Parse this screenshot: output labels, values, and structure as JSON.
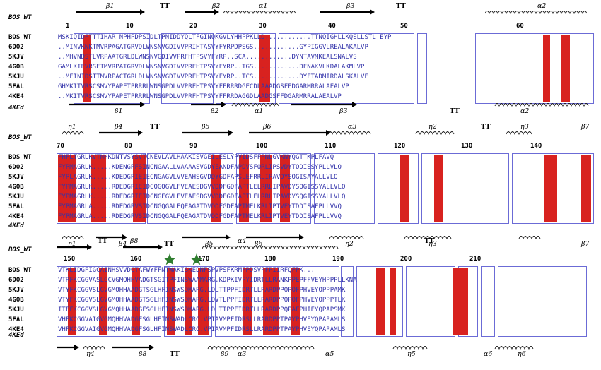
{
  "colors": {
    "conserved_fill": "#d8221f",
    "similar_text": "#d8221f",
    "box_border": "#6b6bd6",
    "arrow": "#000000"
  },
  "panels": [
    {
      "ref_label": "BOS_WT",
      "bottom_label": "4KEd",
      "sequences": [
        {
          "name": "BOS_WT",
          "seq": "MSKIQIDFTTTIHAR NPHPDPSIDLTPNIDDYQLTFGINQKGVLYHHPPKLLD............TTNQIGHLLKQSLLSTL EYP"
        },
        {
          "name": "6DO2",
          "seq": "..MINVKNKTMVRPAGATGRVDLWNSNVGDIVVPRIHTASVYFYRPDPSGS............GYPIGGVLREALAKALVP"
        },
        {
          "name": "5KJV",
          "seq": "..MHVNDSTLVRPAATGRLDLWNSNVGDIVVPRFHTPSVYFYRP..SCA............DYNTAVMKEALSNALVS"
        },
        {
          "name": "4GOB",
          "seq": "GAMLKIEVRSETMVRPATGRVDLWNSNVGDIVVPRFHTPSVYFYRP..TGS............DFNAKVLKDALAKMLVP"
        },
        {
          "name": "5KJU",
          "seq": "..MFINIDSTTMVRPACTGRLDLWNSNVGDIVVPRFHTPSVYFYRP..TCS............DYFTADMIRDALSKALVE"
        },
        {
          "name": "5FAL",
          "seq": "GHMKITVRSCSMVYPAPETPRRRLWNSGPDLVVPRFHTPSVYFFRRRDGECDLAAADGSFFDGARMRRALAEALVP"
        },
        {
          "name": "4KE4",
          "seq": "..MKITVRSCSMVYPAPETPRRRLWNSGPDLVVPRFHTPSVYFFRRDAGGDLAADGSFFDGARMRRALAEALVP"
        }
      ],
      "numbers": [
        "1",
        "10",
        "20",
        "30",
        "40",
        "50",
        "60"
      ],
      "top_ss": [
        "β1",
        "TT",
        "β2",
        "α1",
        "β3",
        "TT",
        "α2"
      ],
      "bottom_ss": [
        "β1",
        "β2",
        "α1",
        "β3",
        "TT",
        "α2"
      ]
    },
    {
      "ref_label": "BOS_WT",
      "bottom_label": "4KEd",
      "sequences": [
        {
          "name": "BOS_WT",
          "seq": "FHFLTGRLKVTNHKDNTVSYSVTCNEVLAVLHAAKISVGEILESLYPVIDSFFPNLGVKNYQGTTKPLFAVQ"
        },
        {
          "name": "6DO2",
          "seq": "FYPMAGRLK.....KDENGRFSINCNGAALLVAAAASVGDYEANDFAPDVSFQRLIPSVDYTQDISSYPLLVLQ"
        },
        {
          "name": "5KJV",
          "seq": "FYPLAGRLK.....KDEDGRIEIECNGAGVLVVEAHSGVDDYGDFAPSLEFRRLIPAVDYSQGISAYALLVLQ"
        },
        {
          "name": "4GOB",
          "seq": "FYPMAGRLK.....RDEDGRIEIDCQGQGVLFVEAESDGVVDDFGDFAPTLELRRLIPAVDYSQGISSYALLVLQ"
        },
        {
          "name": "5KJU",
          "seq": "FYPMAGRLK.....RDEDGRIEIDCNGEGVLFVEAESDGVVDDFGDFAPTLELRRLIPAVDYSQGISSYALLVLQ"
        },
        {
          "name": "5FAL",
          "seq": "FYPMAGRLA.....RDEDGRVSIDCNGQGALFQEAGATDVDDFGDFAPTMELKRLIPTVEYTDDISAFPLLVVQ"
        },
        {
          "name": "4KE4",
          "seq": "FYPMAGRLA.....RDEDGRVSIDCNGQGALFQEAGATDVDDFGDFAPTMELKRLIPTVEYTDDISAFPLLVVQ"
        }
      ],
      "numbers": [
        "70",
        "80",
        "90",
        "100",
        "110",
        "120",
        "130",
        "140"
      ],
      "top_ss": [
        "η1",
        "β4",
        "TT",
        "β5",
        "β6",
        "α3",
        "η2",
        "TT",
        "η3",
        "β7"
      ],
      "bottom_ss": [
        "η1",
        "β4",
        "TT",
        "β5",
        "β6",
        "η2",
        "η3",
        "β7"
      ]
    },
    {
      "ref_label": "BOS_WT",
      "bottom_label": "4KEd",
      "sequences": [
        {
          "name": "BOS_WT",
          "seq": "VTKLIDGFIGCAINHSVVDGTAFWYFFNTWAKISKEDNFSPVPSFKRMFPDSVPFPIIRFQFPK..."
        },
        {
          "name": "6DO2",
          "seq": "VTRFKCGGVASLGCVGMQHHVADGTSGITPFINSWAAMARG.KDPKIVPYIDRTLLRANKPPEPFFVEYHPPPLLKNA"
        },
        {
          "name": "5KJV",
          "seq": "VTYFKCGGVSLGVGMQHHAADGTSGLHFINSWSDMARG.LDLTTPPFIDRTLLRARDPPQPQFPHVEYQPPPAMK"
        },
        {
          "name": "4GOB",
          "seq": "VTYFKCGGVSLGVGMQHHAADGTSGLHFINSWSDMARG.LDVTLPPFIDRTLLRARDPPQPQFPHVEYQPPPTLK"
        },
        {
          "name": "5KJU",
          "seq": "ITFFKCGGVSLGVGMQHHAADGFSGLHFINSWSDMARG.LDLTIPPFIDRTLLRARDPPQPAFPHIEYQPAPSMK"
        },
        {
          "name": "5FAL",
          "seq": "VHFKCGGVAIGVGMQHHVADGFSGLHFINSWADLCRG.VPIAVMPFIDRSLLRARDPPTPAYPHVEYQPAPAMLS"
        },
        {
          "name": "4KE4",
          "seq": "VHFKCGGVAIGVGMQHHVADGFSGLHFINSWADLCRG.VPIAVMPFIDRSLLRARDPPTPAYPHVEYQPAPAMLS"
        }
      ],
      "numbers": [
        "150",
        "160",
        "170",
        "180",
        "190",
        "200",
        "210"
      ],
      "top_ss": [
        "TT",
        "β8",
        "α4",
        "TT"
      ],
      "bottom_ss": [
        "η4",
        "β8",
        "TT",
        "β9",
        "α3",
        "α5",
        "η5",
        "α6",
        "η6"
      ]
    }
  ]
}
